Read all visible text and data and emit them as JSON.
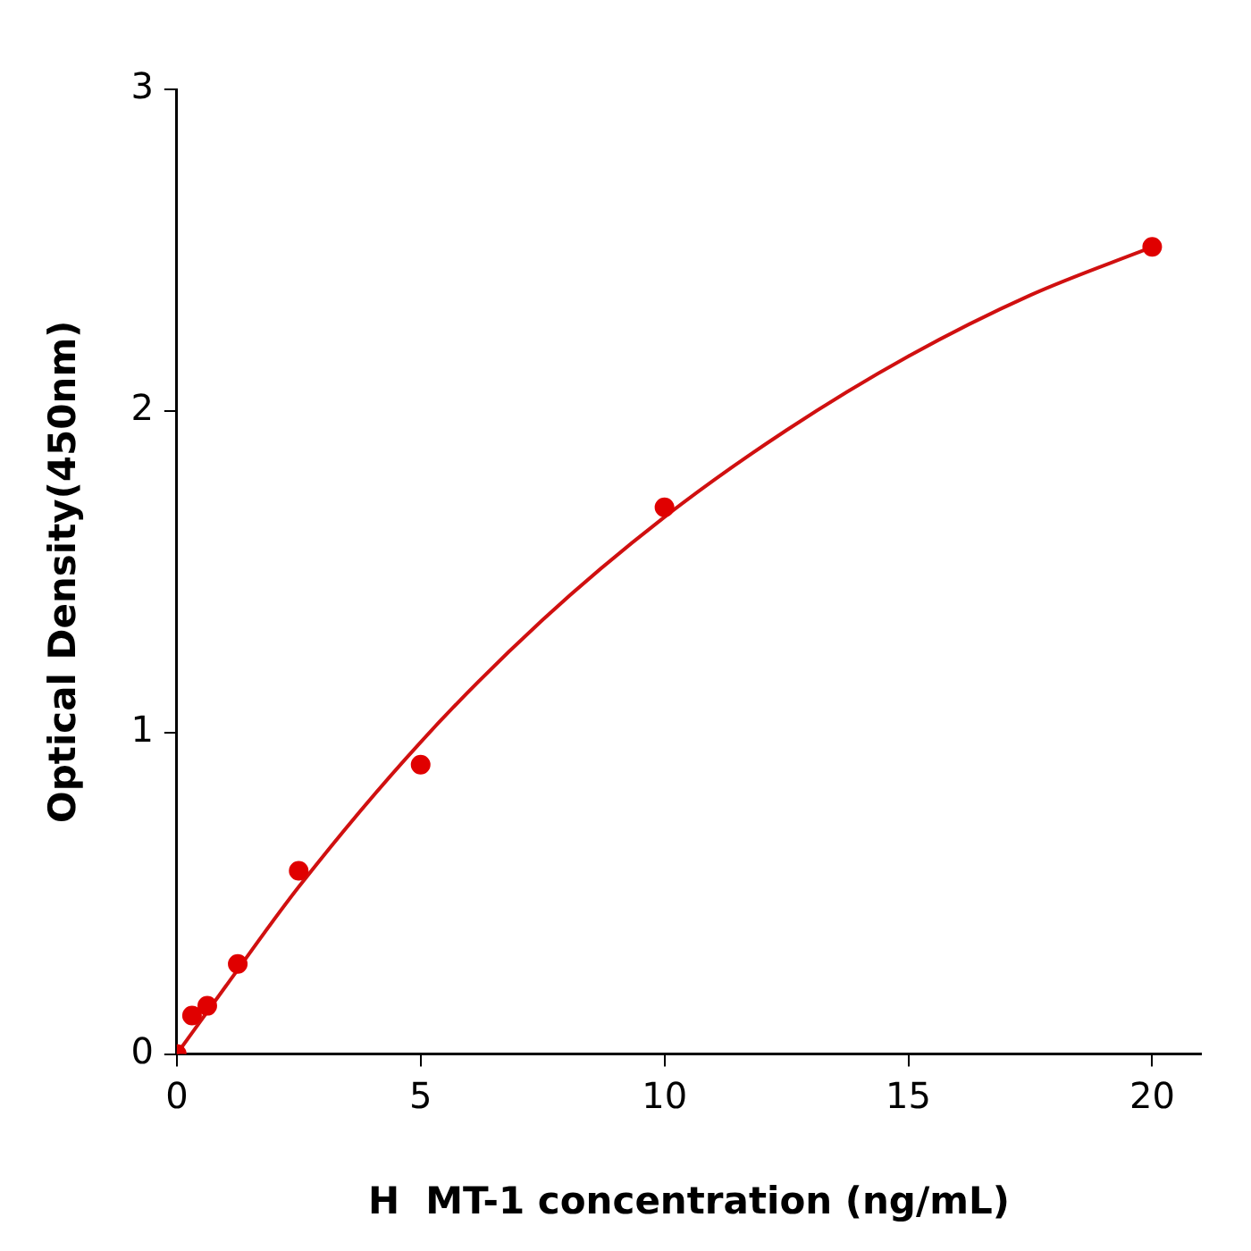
{
  "chart_data": {
    "type": "scatter",
    "xlabel": "H  MT-1 concentration (ng/mL)",
    "ylabel": "Optical Density(450nm)",
    "xlim": [
      0,
      21
    ],
    "xticks": [
      0,
      5,
      10,
      15,
      20
    ],
    "ylim": [
      0,
      3
    ],
    "yticks": [
      0,
      1,
      2,
      3
    ],
    "grid": false,
    "legend": false,
    "series": [
      {
        "type": "scatter",
        "color": "#e00000",
        "marker": "circle",
        "x": [
          0,
          0.3125,
          0.625,
          1.25,
          2.5,
          5,
          10,
          20
        ],
        "values": [
          0,
          0.12,
          0.15,
          0.28,
          0.57,
          0.9,
          1.7,
          2.51
        ]
      },
      {
        "type": "line",
        "color": "#d01010",
        "marker": "none",
        "line_style": "solid",
        "x": [
          0,
          1,
          2.5,
          5,
          7.5,
          10,
          12.5,
          15,
          17.5,
          20
        ],
        "values": [
          0,
          0.21,
          0.52,
          0.97,
          1.35,
          1.67,
          1.94,
          2.17,
          2.36,
          2.51
        ]
      }
    ]
  }
}
